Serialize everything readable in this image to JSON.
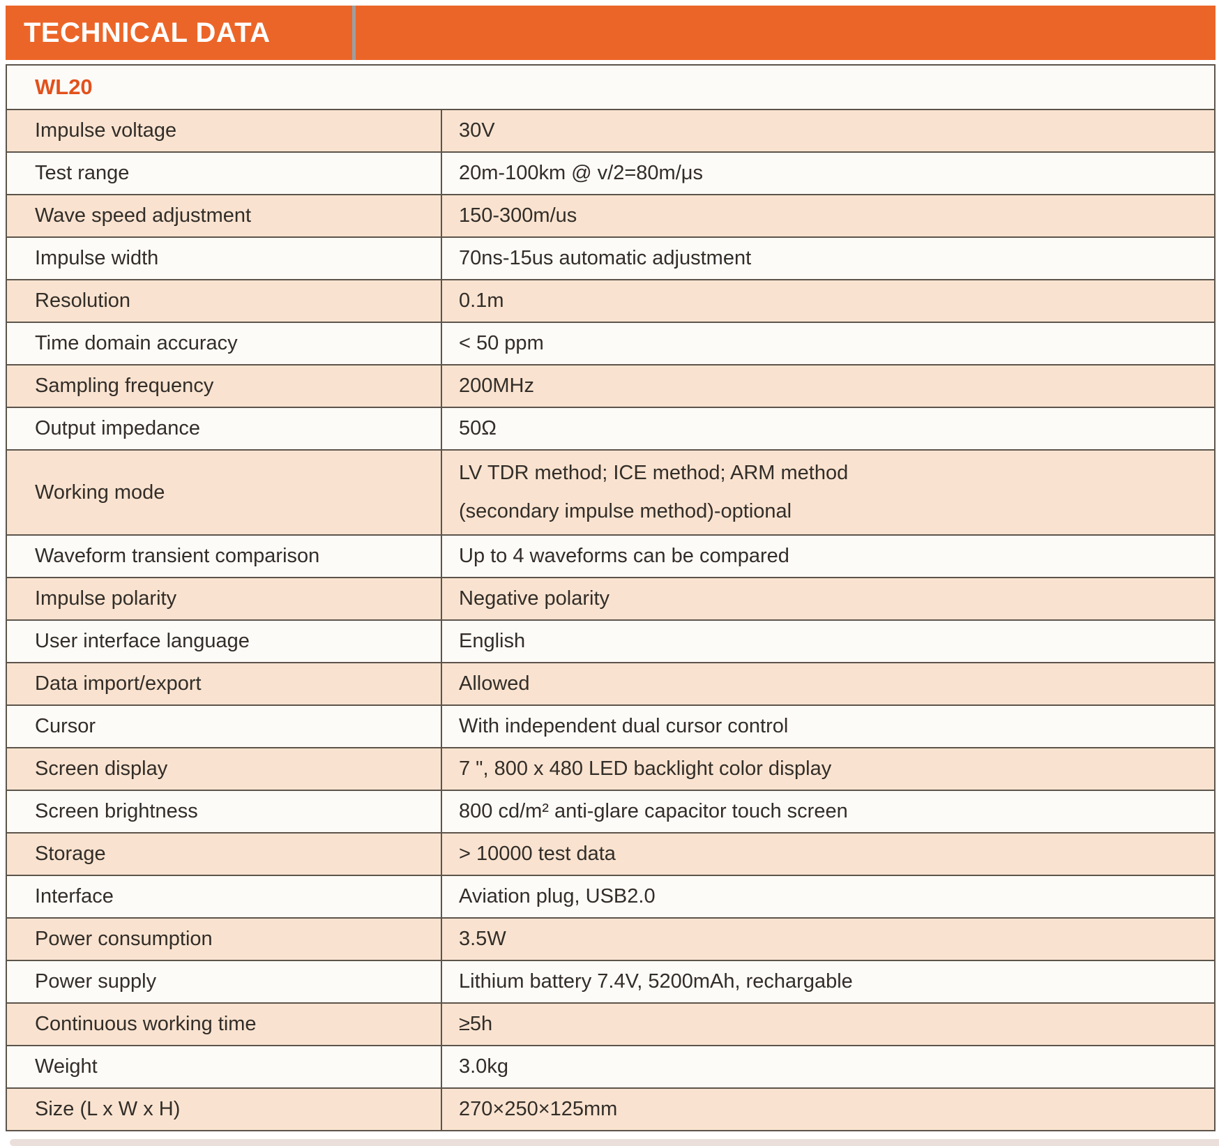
{
  "header": {
    "title": "TECHNICAL DATA"
  },
  "model": "WL20",
  "table": {
    "rows": [
      {
        "label": "Impulse voltage",
        "value": "30V"
      },
      {
        "label": "Test range",
        "value": "20m-100km @ v/2=80m/μs"
      },
      {
        "label": "Wave speed adjustment",
        "value": "150-300m/us"
      },
      {
        "label": "Impulse width",
        "value": "70ns-15us automatic adjustment"
      },
      {
        "label": "Resolution",
        "value": "0.1m"
      },
      {
        "label": "Time domain accuracy",
        "value": "< 50 ppm"
      },
      {
        "label": "Sampling frequency",
        "value": "200MHz"
      },
      {
        "label": "Output impedance",
        "value": "50Ω"
      },
      {
        "label": "Working mode",
        "value": "LV TDR method; ICE method; ARM method\n(secondary impulse method)-optional"
      },
      {
        "label": "Waveform transient comparison",
        "value": "Up to 4 waveforms can be compared"
      },
      {
        "label": "Impulse polarity",
        "value": "Negative polarity"
      },
      {
        "label": "User interface language",
        "value": "English"
      },
      {
        "label": "Data import/export",
        "value": "Allowed"
      },
      {
        "label": "Cursor",
        "value": "With independent dual cursor control"
      },
      {
        "label": "Screen display",
        "value": "7 \", 800 x 480 LED backlight color display"
      },
      {
        "label": "Screen brightness",
        "value": "800 cd/m² anti-glare capacitor touch screen"
      },
      {
        "label": "Storage",
        "value": "> 10000 test data"
      },
      {
        "label": "Interface",
        "value": "Aviation plug, USB2.0"
      },
      {
        "label": "Power consumption",
        "value": "3.5W"
      },
      {
        "label": "Power supply",
        "value": "Lithium battery 7.4V, 5200mAh, rechargable"
      },
      {
        "label": "Continuous working time",
        "value": "≥5h"
      },
      {
        "label": "Weight",
        "value": "3.0kg"
      },
      {
        "label": "Size (L x W x H)",
        "value": "270×250×125mm"
      }
    ]
  },
  "colors": {
    "banner_background": "#ec6528",
    "model_text": "#e2511c",
    "row_peach": "#f9e3d0",
    "row_white": "#fdfbf8",
    "grid_line": "#5c544b",
    "banner_divider": "#9e9e9e",
    "bottom_strip": "#eadfdb",
    "body_text": "#322d28"
  }
}
